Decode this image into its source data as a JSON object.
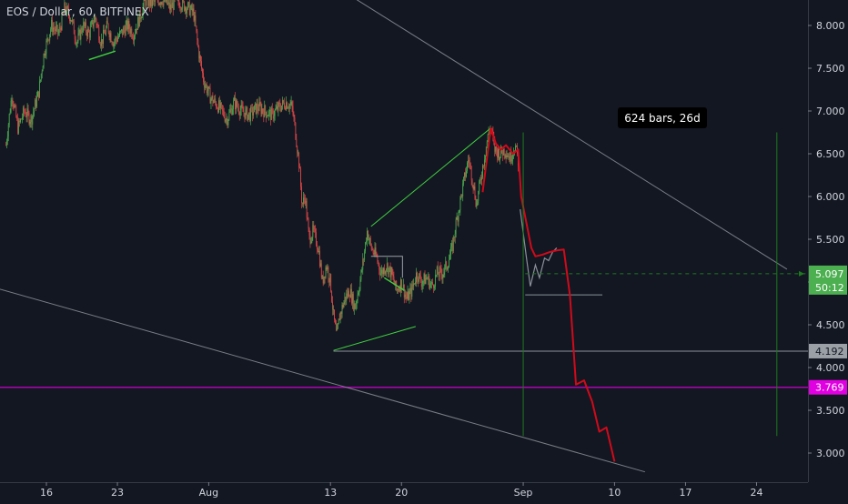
{
  "header": {
    "symbol_title": "EOS / Dollar, 60, BITFINEX"
  },
  "colors": {
    "background": "#131722",
    "candle_up": "#4caf50",
    "candle_down": "#e04848",
    "projection": "#d10a1a",
    "pattern_lines": "#3fd13f",
    "channel_lines": "#9aa0a6",
    "magenta_level": "#e100e1",
    "measure_line": "#1e7a1e"
  },
  "chart_data": {
    "type": "candlestick",
    "title": "EOS / Dollar, 60, BITFINEX",
    "ylim": [
      2.75,
      8.3
    ],
    "y_ticks": [
      "3.000",
      "3.500",
      "4.000",
      "4.500",
      "5.000",
      "5.500",
      "6.000",
      "6.500",
      "7.000",
      "7.500",
      "8.000"
    ],
    "x_ticks": [
      {
        "label": "16",
        "day": 16
      },
      {
        "label": "23",
        "day": 23
      },
      {
        "label": "Aug",
        "day": 32
      },
      {
        "label": "13",
        "day": 44
      },
      {
        "label": "20",
        "day": 51
      },
      {
        "label": "Sep",
        "day": 63
      },
      {
        "label": "10",
        "day": 72
      },
      {
        "label": "17",
        "day": 79
      },
      {
        "label": "24",
        "day": 86
      }
    ],
    "price_path": [
      [
        12.0,
        6.6
      ],
      [
        12.6,
        7.2
      ],
      [
        13.2,
        6.8
      ],
      [
        13.8,
        7.0
      ],
      [
        14.5,
        6.9
      ],
      [
        15.2,
        7.2
      ],
      [
        15.8,
        7.7
      ],
      [
        16.5,
        8.0
      ],
      [
        17.2,
        7.9
      ],
      [
        17.8,
        8.2
      ],
      [
        18.4,
        8.1
      ],
      [
        19.0,
        7.8
      ],
      [
        19.6,
        8.0
      ],
      [
        20.2,
        7.9
      ],
      [
        20.8,
        8.1
      ],
      [
        21.4,
        7.8
      ],
      [
        22.0,
        8.0
      ],
      [
        22.6,
        7.8
      ],
      [
        23.3,
        7.9
      ],
      [
        24.0,
        8.0
      ],
      [
        24.6,
        7.9
      ],
      [
        25.2,
        8.1
      ],
      [
        25.8,
        8.3
      ],
      [
        26.4,
        8.25
      ],
      [
        27.0,
        8.3
      ],
      [
        27.6,
        8.3
      ],
      [
        28.2,
        8.2
      ],
      [
        28.8,
        8.3
      ],
      [
        29.4,
        8.25
      ],
      [
        30.0,
        8.2
      ],
      [
        30.5,
        8.15
      ],
      [
        31.0,
        7.7
      ],
      [
        31.5,
        7.35
      ],
      [
        32.2,
        7.15
      ],
      [
        33.0,
        7.05
      ],
      [
        33.8,
        6.9
      ],
      [
        34.5,
        7.1
      ],
      [
        35.2,
        7.0
      ],
      [
        36.0,
        6.95
      ],
      [
        36.8,
        7.05
      ],
      [
        37.5,
        7.0
      ],
      [
        38.2,
        6.95
      ],
      [
        39.0,
        7.05
      ],
      [
        39.6,
        7.1
      ],
      [
        40.2,
        7.05
      ],
      [
        40.5,
        6.8
      ],
      [
        40.9,
        6.4
      ],
      [
        41.2,
        5.9
      ],
      [
        41.5,
        6.0
      ],
      [
        41.9,
        5.5
      ],
      [
        42.3,
        5.6
      ],
      [
        42.8,
        5.4
      ],
      [
        43.2,
        5.0
      ],
      [
        43.6,
        5.2
      ],
      [
        44.0,
        5.0
      ],
      [
        44.3,
        4.6
      ],
      [
        44.6,
        4.35
      ],
      [
        44.9,
        4.6
      ],
      [
        45.4,
        4.8
      ],
      [
        45.9,
        4.9
      ],
      [
        46.4,
        4.7
      ],
      [
        46.9,
        5.0
      ],
      [
        47.3,
        5.3
      ],
      [
        47.6,
        5.6
      ],
      [
        48.0,
        5.4
      ],
      [
        48.5,
        5.3
      ],
      [
        49.0,
        5.1
      ],
      [
        49.5,
        5.2
      ],
      [
        50.0,
        5.1
      ],
      [
        50.5,
        4.9
      ],
      [
        51.0,
        5.0
      ],
      [
        51.5,
        4.8
      ],
      [
        52.0,
        4.9
      ],
      [
        52.5,
        5.1
      ],
      [
        53.0,
        5.0
      ],
      [
        53.5,
        5.05
      ],
      [
        54.0,
        4.95
      ],
      [
        54.5,
        5.1
      ],
      [
        55.0,
        5.1
      ],
      [
        55.5,
        5.2
      ],
      [
        56.0,
        5.4
      ],
      [
        56.4,
        5.7
      ],
      [
        56.8,
        5.95
      ],
      [
        57.2,
        6.2
      ],
      [
        57.6,
        6.45
      ],
      [
        58.0,
        6.2
      ],
      [
        58.4,
        5.9
      ],
      [
        58.8,
        6.2
      ],
      [
        59.2,
        6.5
      ],
      [
        59.6,
        6.75
      ],
      [
        59.8,
        6.8
      ],
      [
        60.2,
        6.55
      ],
      [
        60.7,
        6.5
      ],
      [
        61.2,
        6.55
      ],
      [
        61.7,
        6.45
      ],
      [
        62.2,
        6.6
      ],
      [
        62.5,
        6.4
      ]
    ],
    "projection_path": [
      [
        59.0,
        6.05
      ],
      [
        59.8,
        6.8
      ],
      [
        60.3,
        6.62
      ],
      [
        60.8,
        6.55
      ],
      [
        61.3,
        6.6
      ],
      [
        62.0,
        6.5
      ],
      [
        62.5,
        6.55
      ],
      [
        62.8,
        6.0
      ],
      [
        63.8,
        5.4
      ],
      [
        64.2,
        5.3
      ],
      [
        64.9,
        5.32
      ],
      [
        65.6,
        5.35
      ],
      [
        66.3,
        5.37
      ],
      [
        67.0,
        5.38
      ],
      [
        67.6,
        4.85
      ],
      [
        68.2,
        3.8
      ],
      [
        69.0,
        3.85
      ],
      [
        69.8,
        3.6
      ],
      [
        70.5,
        3.25
      ],
      [
        71.2,
        3.3
      ],
      [
        72.0,
        2.9
      ]
    ],
    "recent_path": [
      [
        62.7,
        5.85
      ],
      [
        63.3,
        5.3
      ],
      [
        63.7,
        4.95
      ],
      [
        64.2,
        5.2
      ],
      [
        64.6,
        5.05
      ],
      [
        65.1,
        5.28
      ],
      [
        65.5,
        5.25
      ],
      [
        65.9,
        5.35
      ],
      [
        66.3,
        5.4
      ]
    ],
    "channel_upper": [
      [
        34.5,
        9.2
      ],
      [
        89.0,
        5.15
      ]
    ],
    "channel_lower": [
      [
        0,
        5.3
      ],
      [
        75.0,
        2.78
      ]
    ],
    "wedge_lines": [
      [
        [
          44.3,
          4.2
        ],
        [
          52.4,
          4.48
        ]
      ],
      [
        [
          48.0,
          5.65
        ],
        [
          59.8,
          6.8
        ]
      ]
    ],
    "small_markings": [
      [
        [
          20.2,
          7.6
        ],
        [
          22.8,
          7.7
        ]
      ],
      [
        [
          49.3,
          5.05
        ],
        [
          51.3,
          4.9
        ]
      ]
    ],
    "horizontal_levels": [
      {
        "price": 4.192,
        "label": "4.192",
        "color": "#9aa0a6",
        "start_day": 44.3
      },
      {
        "price": 3.769,
        "label": "3.769",
        "color": "#e100e1",
        "start_day": 0
      },
      {
        "price": 4.85,
        "label": "",
        "color": "#9aa0a6",
        "start_day": 63.2,
        "end_day": 70.8
      }
    ],
    "current_price": {
      "price": 5.097,
      "label": "5.097",
      "countdown": "50:12",
      "start_day": 63.2
    },
    "measure_tool": {
      "start_day": 63.0,
      "end_day": 88.0,
      "from_price": 3.2,
      "to_price": 6.75,
      "label": "624 bars, 26d"
    },
    "pattern_box": {
      "x0": 48.0,
      "x1": 51.1,
      "price": 5.3
    }
  }
}
